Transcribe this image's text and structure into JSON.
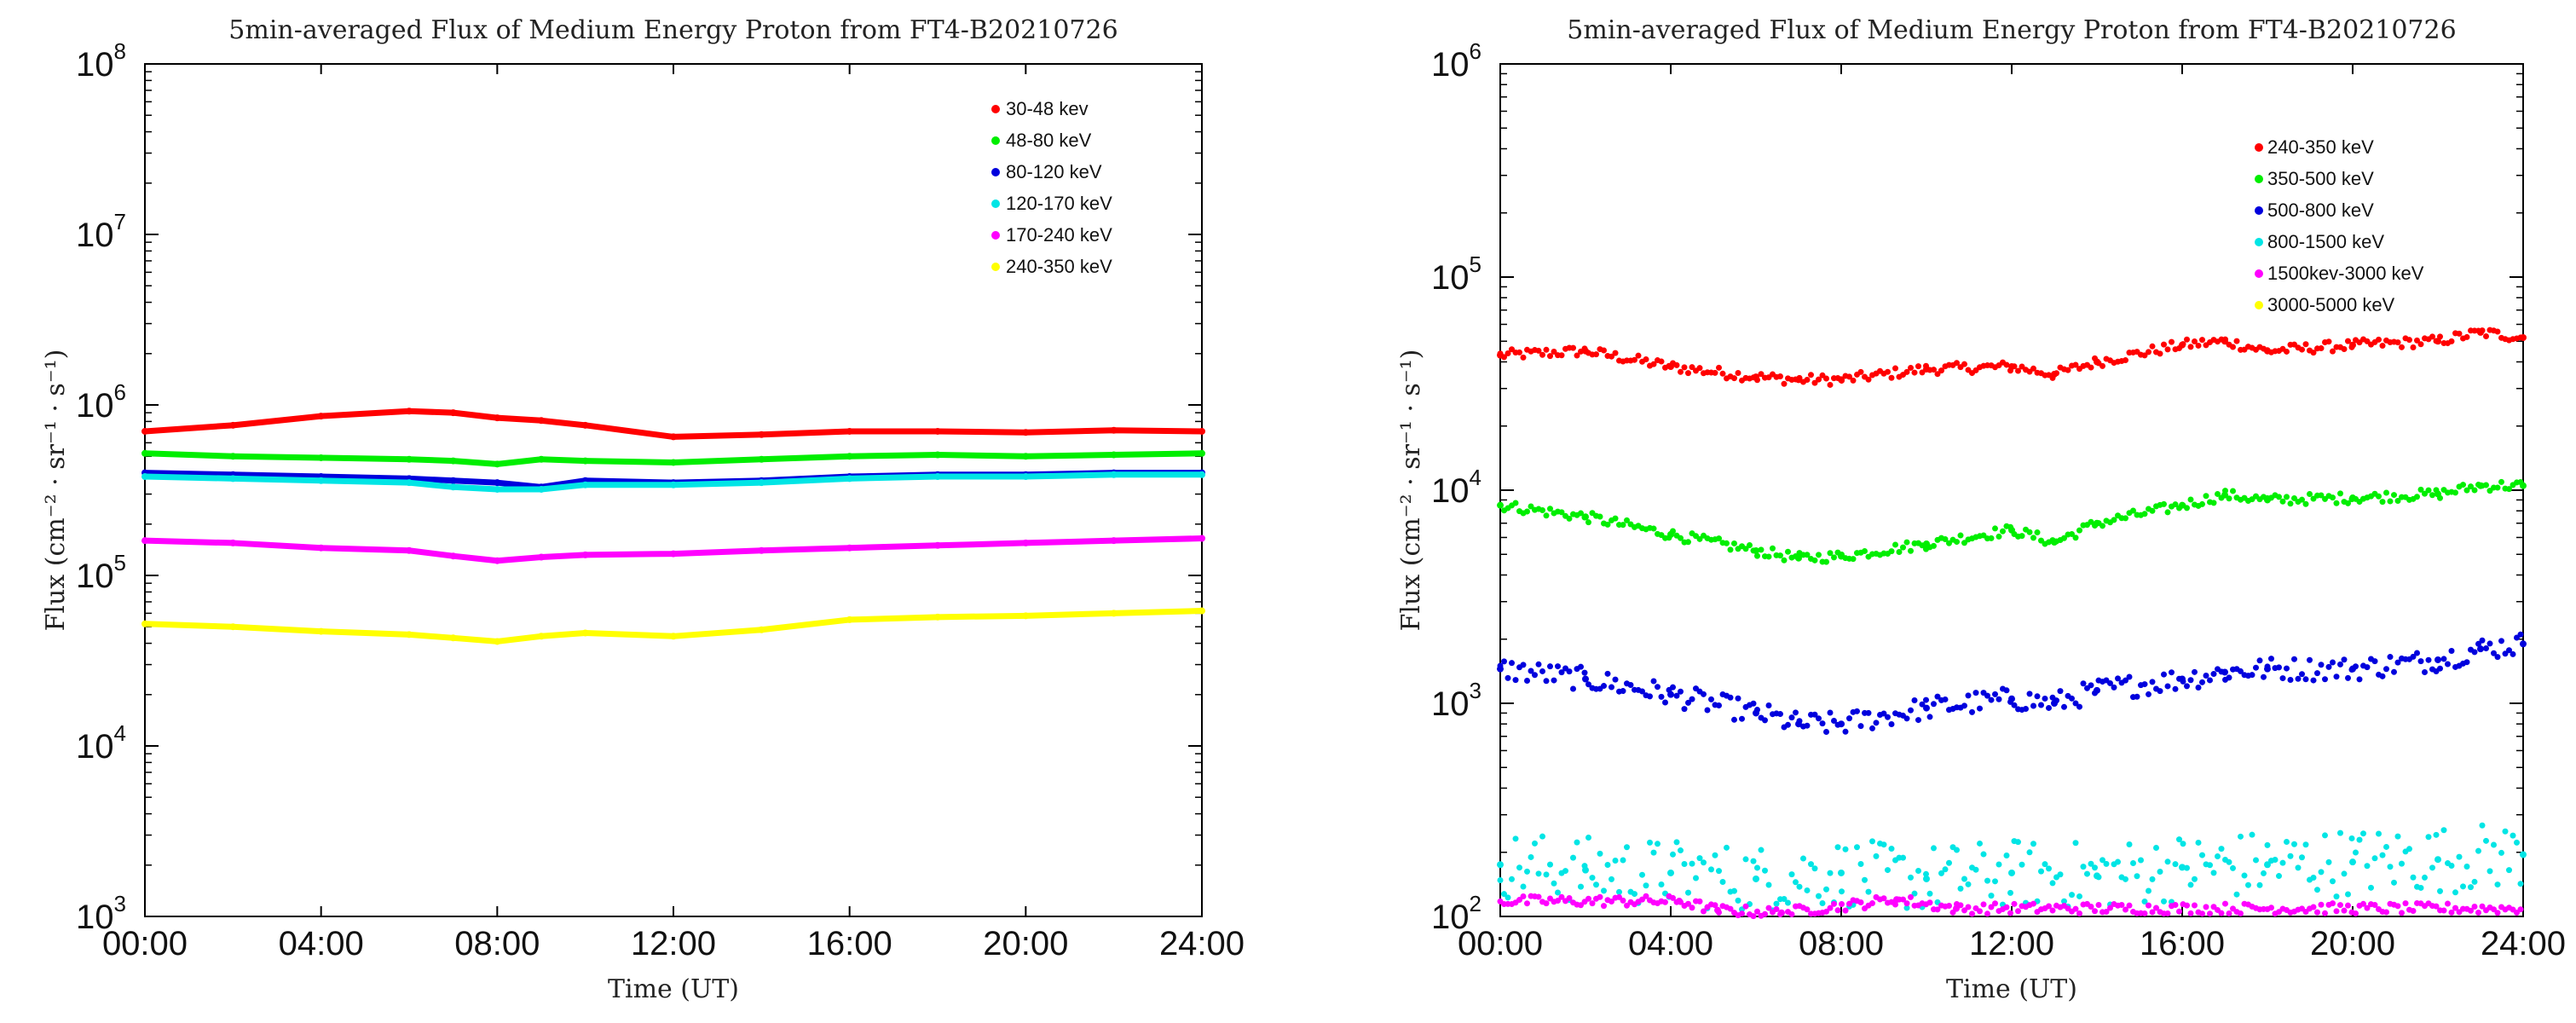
{
  "chart_data": [
    {
      "type": "scatter",
      "title": "5min-averaged Flux of Medium Energy Proton from FT4-B20210726",
      "xlabel": "Time (UT)",
      "ylabel": "Flux (cm⁻² · sr⁻¹ · s⁻¹)",
      "xticks": [
        "00:00",
        "04:00",
        "08:00",
        "12:00",
        "16:00",
        "20:00",
        "24:00"
      ],
      "xlim": [
        0,
        24
      ],
      "ylim": [
        1000,
        100000000
      ],
      "yscale": "log",
      "yticks": [
        {
          "base": "10",
          "exp": "3"
        },
        {
          "base": "10",
          "exp": "4"
        },
        {
          "base": "10",
          "exp": "5"
        },
        {
          "base": "10",
          "exp": "6"
        },
        {
          "base": "10",
          "exp": "7"
        },
        {
          "base": "10",
          "exp": "8"
        }
      ],
      "legend_position": "top-right",
      "series": [
        {
          "name": "30-48 kev",
          "color": "#ff0000",
          "x": [
            0,
            2,
            4,
            6,
            7,
            8,
            9,
            10,
            12,
            14,
            16,
            18,
            20,
            22,
            24
          ],
          "y": [
            700000,
            760000,
            860000,
            920000,
            900000,
            840000,
            810000,
            760000,
            650000,
            670000,
            700000,
            700000,
            690000,
            710000,
            700000
          ]
        },
        {
          "name": "48-80 keV",
          "color": "#00ee00",
          "x": [
            0,
            2,
            4,
            6,
            7,
            8,
            9,
            10,
            12,
            14,
            16,
            18,
            20,
            22,
            24
          ],
          "y": [
            520000,
            500000,
            490000,
            480000,
            470000,
            450000,
            480000,
            470000,
            460000,
            480000,
            500000,
            510000,
            500000,
            510000,
            520000
          ]
        },
        {
          "name": "80-120 keV",
          "color": "#0000dd",
          "x": [
            0,
            2,
            4,
            6,
            7,
            8,
            9,
            10,
            12,
            14,
            16,
            18,
            20,
            22,
            24
          ],
          "y": [
            400000,
            390000,
            380000,
            370000,
            360000,
            350000,
            330000,
            360000,
            350000,
            360000,
            380000,
            390000,
            390000,
            400000,
            400000
          ]
        },
        {
          "name": "120-170 keV",
          "color": "#00e5e5",
          "x": [
            0,
            2,
            4,
            6,
            7,
            8,
            9,
            10,
            12,
            14,
            16,
            18,
            20,
            22,
            24
          ],
          "y": [
            380000,
            370000,
            360000,
            350000,
            330000,
            320000,
            320000,
            340000,
            340000,
            350000,
            370000,
            380000,
            380000,
            390000,
            390000
          ]
        },
        {
          "name": "170-240 keV",
          "color": "#ff00ff",
          "x": [
            0,
            2,
            4,
            6,
            7,
            8,
            9,
            10,
            12,
            14,
            16,
            18,
            20,
            22,
            24
          ],
          "y": [
            160000,
            155000,
            145000,
            140000,
            130000,
            122000,
            128000,
            132000,
            134000,
            140000,
            145000,
            150000,
            155000,
            160000,
            165000
          ]
        },
        {
          "name": "240-350 keV",
          "color": "#ffff00",
          "x": [
            0,
            2,
            4,
            6,
            7,
            8,
            9,
            10,
            12,
            14,
            16,
            18,
            20,
            22,
            24
          ],
          "y": [
            52000,
            50000,
            47000,
            45000,
            43000,
            41000,
            44000,
            46000,
            44000,
            48000,
            55000,
            57000,
            58000,
            60000,
            62000
          ]
        }
      ]
    },
    {
      "type": "scatter",
      "title": "5min-averaged Flux of Medium Energy Proton from FT4-B20210726",
      "xlabel": "Time (UT)",
      "ylabel": "Flux (cm⁻² · sr⁻¹ · s⁻¹)",
      "xticks": [
        "00:00",
        "04:00",
        "08:00",
        "12:00",
        "16:00",
        "20:00",
        "24:00"
      ],
      "xlim": [
        0,
        24
      ],
      "ylim": [
        100,
        1000000
      ],
      "yscale": "log",
      "yticks": [
        {
          "base": "10",
          "exp": "2"
        },
        {
          "base": "10",
          "exp": "3"
        },
        {
          "base": "10",
          "exp": "4"
        },
        {
          "base": "10",
          "exp": "5"
        },
        {
          "base": "10",
          "exp": "6"
        }
      ],
      "legend_position": "top-right",
      "series": [
        {
          "name": "240-350 keV",
          "color": "#ff0000",
          "x": [
            0,
            2,
            4,
            6,
            7,
            8,
            10,
            12,
            13,
            14,
            16,
            17,
            18,
            20,
            22,
            23,
            24
          ],
          "y": [
            43000,
            45000,
            38000,
            34000,
            33000,
            33000,
            37000,
            38000,
            35000,
            40000,
            48000,
            50000,
            45000,
            48000,
            50000,
            55000,
            52000
          ]
        },
        {
          "name": "350-500 keV",
          "color": "#00ee00",
          "x": [
            0,
            2,
            4,
            6,
            7,
            8,
            10,
            12,
            13,
            14,
            16,
            17,
            18,
            20,
            22,
            23,
            24
          ],
          "y": [
            8500,
            7500,
            6200,
            5200,
            4800,
            4900,
            5600,
            6500,
            5700,
            7000,
            8500,
            9500,
            9000,
            9200,
            9600,
            10500,
            10500
          ]
        },
        {
          "name": "500-800 keV",
          "color": "#0000dd",
          "x": [
            0,
            2,
            4,
            6,
            7,
            8,
            10,
            12,
            13,
            14,
            16,
            17,
            18,
            20,
            22,
            23,
            24
          ],
          "y": [
            1450,
            1300,
            1100,
            900,
            800,
            800,
            950,
            1050,
            1000,
            1150,
            1300,
            1400,
            1450,
            1450,
            1600,
            1800,
            1900
          ]
        },
        {
          "name": "800-1500 keV",
          "color": "#00e5e5",
          "x": [
            0,
            2,
            4,
            6,
            8,
            10,
            12,
            14,
            16,
            18,
            20,
            22,
            24
          ],
          "y": [
            175,
            165,
            160,
            150,
            160,
            150,
            160,
            155,
            170,
            175,
            180,
            185,
            195
          ]
        },
        {
          "name": "1500kev-3000 keV",
          "color": "#ff00ff",
          "x": [
            4.2,
            5.1,
            6.6,
            9.3,
            10.7
          ],
          "y": [
            118,
            107,
            104,
            120,
            109
          ]
        },
        {
          "name": "3000-5000 keV",
          "color": "#ffff00",
          "x": [],
          "y": []
        }
      ]
    }
  ]
}
